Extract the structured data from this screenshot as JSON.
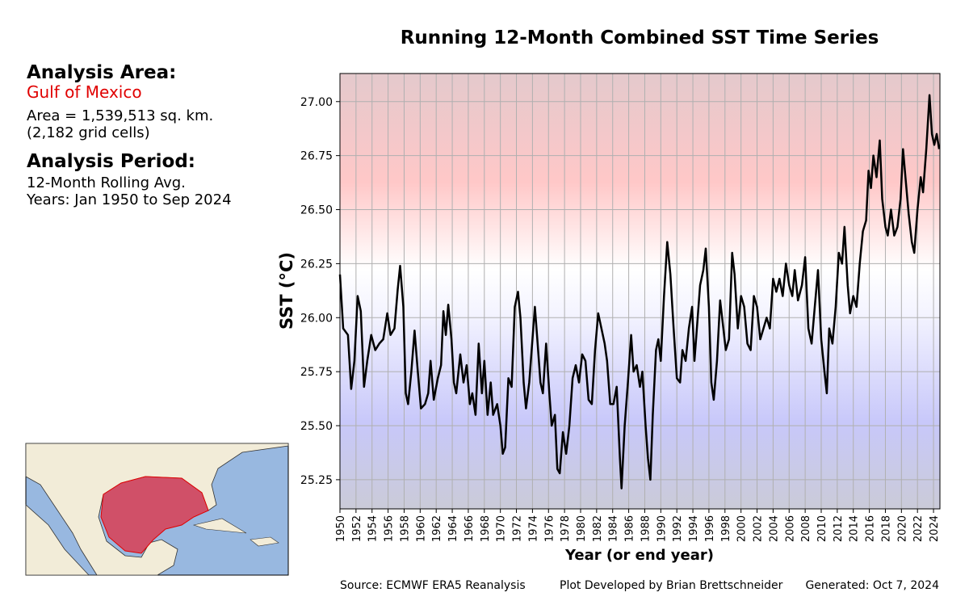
{
  "panel": {
    "area_heading": "Analysis Area:",
    "area_name": "Gulf of Mexico",
    "area_size": "Area = 1,539,513 sq. km.",
    "grid_cells": "(2,182 grid cells)",
    "period_heading": "Analysis Period:",
    "period_method": "12-Month Rolling Avg.",
    "period_years": "Years: Jan 1950 to Sep 2024"
  },
  "footer": {
    "source": "Source: ECMWF ERA5 Reanalysis",
    "author": "Plot Developed by Brian Brettschneider",
    "generated": "Generated: Oct 7, 2024"
  },
  "chart_data": {
    "type": "line",
    "title": "Running 12-Month Combined SST Time Series",
    "x_label": "Year (or end year)",
    "y_label": "SST (°C)",
    "color": "#000000",
    "grid": true,
    "xlim": [
      1950,
      2024.8
    ],
    "ylim": [
      25.115,
      27.13
    ],
    "xticks": [
      1950,
      1952,
      1954,
      1956,
      1958,
      1960,
      1962,
      1964,
      1966,
      1968,
      1970,
      1972,
      1974,
      1976,
      1978,
      1980,
      1982,
      1984,
      1986,
      1988,
      1990,
      1992,
      1994,
      1996,
      1998,
      2000,
      2002,
      2004,
      2006,
      2008,
      2010,
      2012,
      2014,
      2016,
      2018,
      2020,
      2022,
      2024
    ],
    "yticks": [
      25.25,
      {
        "value": 25.5,
        "label": "25.50"
      },
      25.75,
      {
        "value": 26,
        "label": "26.00"
      },
      26.25,
      {
        "value": 26.5,
        "label": "26.50"
      },
      26.75,
      {
        "value": 27,
        "label": "27.00"
      }
    ],
    "x": [
      1950.0,
      1950.4,
      1951.0,
      1951.4,
      1951.8,
      1952.2,
      1952.6,
      1953.0,
      1953.4,
      1953.9,
      1954.4,
      1954.9,
      1955.4,
      1955.9,
      1956.3,
      1956.8,
      1957.2,
      1957.5,
      1957.9,
      1958.2,
      1958.5,
      1958.9,
      1959.3,
      1959.7,
      1960.1,
      1960.6,
      1961.0,
      1961.3,
      1961.7,
      1962.2,
      1962.6,
      1962.9,
      1963.2,
      1963.5,
      1963.9,
      1964.2,
      1964.5,
      1965.0,
      1965.4,
      1965.8,
      1966.2,
      1966.5,
      1966.9,
      1967.3,
      1967.7,
      1968.0,
      1968.4,
      1968.8,
      1969.1,
      1969.6,
      1970.0,
      1970.3,
      1970.6,
      1971.0,
      1971.4,
      1971.8,
      1972.2,
      1972.5,
      1972.9,
      1973.2,
      1973.6,
      1974.0,
      1974.3,
      1974.6,
      1975.0,
      1975.3,
      1975.7,
      1976.1,
      1976.4,
      1976.8,
      1977.1,
      1977.4,
      1977.8,
      1978.2,
      1978.6,
      1979.0,
      1979.4,
      1979.8,
      1980.2,
      1980.6,
      1981.0,
      1981.4,
      1981.8,
      1982.2,
      1982.6,
      1983.0,
      1983.3,
      1983.7,
      1984.1,
      1984.5,
      1984.9,
      1985.1,
      1985.5,
      1985.9,
      1986.3,
      1986.6,
      1987.0,
      1987.4,
      1987.7,
      1988.1,
      1988.4,
      1988.7,
      1989.0,
      1989.4,
      1989.7,
      1990.0,
      1990.4,
      1990.8,
      1991.2,
      1991.6,
      1992.0,
      1992.4,
      1992.7,
      1993.1,
      1993.5,
      1993.9,
      1994.2,
      1994.6,
      1994.9,
      1995.3,
      1995.6,
      1996.0,
      1996.3,
      1996.6,
      1997.0,
      1997.4,
      1997.8,
      1998.1,
      1998.5,
      1998.9,
      1999.2,
      1999.6,
      2000.0,
      2000.4,
      2000.8,
      2001.2,
      2001.6,
      2002.0,
      2002.4,
      2002.8,
      2003.2,
      2003.6,
      2004.0,
      2004.4,
      2004.8,
      2005.2,
      2005.6,
      2006.0,
      2006.4,
      2006.7,
      2007.1,
      2007.6,
      2008.0,
      2008.4,
      2008.8,
      2009.2,
      2009.6,
      2010.0,
      2010.4,
      2010.7,
      2011.0,
      2011.4,
      2011.8,
      2012.2,
      2012.6,
      2012.9,
      2013.3,
      2013.6,
      2014.0,
      2014.4,
      2014.8,
      2015.2,
      2015.6,
      2015.9,
      2016.2,
      2016.5,
      2016.9,
      2017.3,
      2017.6,
      2018.0,
      2018.3,
      2018.7,
      2019.1,
      2019.5,
      2019.9,
      2020.2,
      2020.5,
      2020.9,
      2021.3,
      2021.6,
      2022.0,
      2022.4,
      2022.7,
      2023.1,
      2023.5,
      2023.8,
      2024.1,
      2024.4,
      2024.7
    ],
    "values": [
      26.2,
      25.95,
      25.92,
      25.67,
      25.8,
      26.1,
      26.03,
      25.68,
      25.8,
      25.92,
      25.85,
      25.88,
      25.9,
      26.02,
      25.92,
      25.95,
      26.13,
      26.24,
      26.05,
      25.65,
      25.6,
      25.75,
      25.94,
      25.75,
      25.58,
      25.6,
      25.65,
      25.8,
      25.62,
      25.72,
      25.78,
      26.03,
      25.92,
      26.06,
      25.9,
      25.7,
      25.65,
      25.83,
      25.7,
      25.78,
      25.6,
      25.65,
      25.55,
      25.88,
      25.65,
      25.8,
      25.55,
      25.7,
      25.55,
      25.6,
      25.5,
      25.37,
      25.4,
      25.72,
      25.68,
      26.05,
      26.12,
      26.0,
      25.7,
      25.58,
      25.7,
      25.9,
      26.05,
      25.9,
      25.7,
      25.65,
      25.88,
      25.65,
      25.5,
      25.55,
      25.3,
      25.28,
      25.47,
      25.37,
      25.5,
      25.72,
      25.78,
      25.7,
      25.83,
      25.8,
      25.62,
      25.6,
      25.85,
      26.02,
      25.95,
      25.88,
      25.8,
      25.6,
      25.6,
      25.68,
      25.35,
      25.21,
      25.5,
      25.7,
      25.92,
      25.75,
      25.78,
      25.68,
      25.75,
      25.5,
      25.35,
      25.25,
      25.55,
      25.85,
      25.9,
      25.8,
      26.1,
      26.35,
      26.2,
      25.95,
      25.72,
      25.7,
      25.85,
      25.8,
      25.95,
      26.05,
      25.8,
      26.0,
      26.15,
      26.22,
      26.32,
      26.05,
      25.7,
      25.62,
      25.8,
      26.08,
      25.95,
      25.85,
      25.9,
      26.3,
      26.2,
      25.95,
      26.1,
      26.05,
      25.88,
      25.85,
      26.1,
      26.05,
      25.9,
      25.95,
      26.0,
      25.95,
      26.18,
      26.12,
      26.18,
      26.1,
      26.25,
      26.15,
      26.1,
      26.22,
      26.08,
      26.15,
      26.28,
      25.95,
      25.88,
      26.05,
      26.22,
      25.9,
      25.75,
      25.65,
      25.95,
      25.88,
      26.05,
      26.3,
      26.25,
      26.42,
      26.15,
      26.02,
      26.1,
      26.05,
      26.25,
      26.4,
      26.45,
      26.68,
      26.6,
      26.75,
      26.65,
      26.82,
      26.55,
      26.42,
      26.38,
      26.5,
      26.38,
      26.42,
      26.55,
      26.78,
      26.65,
      26.48,
      26.35,
      26.3,
      26.5,
      26.65,
      26.58,
      26.78,
      27.03,
      26.85,
      26.8,
      26.85,
      26.78
    ]
  }
}
